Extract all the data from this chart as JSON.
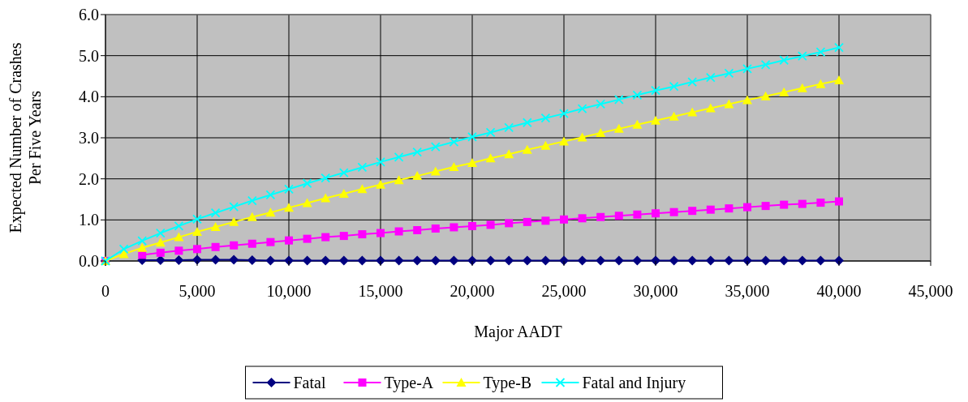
{
  "chart_data": {
    "type": "line",
    "xlabel": "Major AADT",
    "ylabel": "Expected Number of Crashes Per Five Years",
    "x": [
      0,
      1000,
      2000,
      3000,
      4000,
      5000,
      6000,
      7000,
      8000,
      9000,
      10000,
      11000,
      12000,
      13000,
      14000,
      15000,
      16000,
      17000,
      18000,
      19000,
      20000,
      21000,
      22000,
      23000,
      24000,
      25000,
      26000,
      27000,
      28000,
      29000,
      30000,
      31000,
      32000,
      33000,
      34000,
      35000,
      36000,
      37000,
      38000,
      39000,
      40000
    ],
    "series": [
      {
        "name": "Fatal",
        "color": "#000080",
        "marker": "diamond",
        "values": [
          0,
          null,
          0.02,
          0.02,
          0.02,
          0.03,
          0.03,
          0.03,
          0.02,
          0.01,
          0.01,
          0.01,
          0.01,
          0.01,
          0.01,
          0.01,
          0.01,
          0.01,
          0.01,
          0.01,
          0.01,
          0.01,
          0.01,
          0.01,
          0.01,
          0.01,
          0.01,
          0.01,
          0.01,
          0.01,
          0.01,
          0.01,
          0.01,
          0.01,
          0.01,
          0.01,
          0.01,
          0.01,
          0.01,
          0.01,
          0.01
        ]
      },
      {
        "name": "Type-A",
        "color": "#ff00ff",
        "marker": "square",
        "values": [
          0,
          null,
          0.15,
          0.2,
          0.25,
          0.29,
          0.34,
          0.38,
          0.42,
          0.46,
          0.5,
          0.54,
          0.58,
          0.61,
          0.65,
          0.68,
          0.72,
          0.75,
          0.79,
          0.82,
          0.85,
          0.88,
          0.92,
          0.95,
          0.98,
          1.01,
          1.04,
          1.07,
          1.1,
          1.13,
          1.16,
          1.19,
          1.22,
          1.25,
          1.28,
          1.31,
          1.34,
          1.37,
          1.39,
          1.42,
          1.45
        ]
      },
      {
        "name": "Type-B",
        "color": "#ffff00",
        "marker": "triangle",
        "values": [
          0,
          0.17,
          0.32,
          0.45,
          0.58,
          0.71,
          0.83,
          0.95,
          1.07,
          1.18,
          1.3,
          1.41,
          1.53,
          1.64,
          1.75,
          1.86,
          1.97,
          2.07,
          2.18,
          2.29,
          2.39,
          2.5,
          2.6,
          2.71,
          2.81,
          2.91,
          3.01,
          3.12,
          3.22,
          3.32,
          3.42,
          3.52,
          3.62,
          3.72,
          3.82,
          3.92,
          4.01,
          4.11,
          4.21,
          4.31,
          4.4
        ]
      },
      {
        "name": "Fatal and Injury",
        "color": "#00ffff",
        "marker": "cross",
        "values": [
          0,
          0.29,
          0.49,
          0.68,
          0.85,
          1.02,
          1.17,
          1.32,
          1.47,
          1.61,
          1.75,
          1.89,
          2.02,
          2.15,
          2.28,
          2.41,
          2.53,
          2.65,
          2.78,
          2.9,
          3.02,
          3.13,
          3.25,
          3.37,
          3.48,
          3.59,
          3.71,
          3.82,
          3.93,
          4.04,
          4.15,
          4.25,
          4.36,
          4.47,
          4.57,
          4.68,
          4.78,
          4.89,
          4.99,
          5.09,
          5.2
        ]
      }
    ],
    "xlim": [
      0,
      45000
    ],
    "xticks": [
      0,
      {
        "value": 5000,
        "label": "5,000"
      },
      {
        "value": 10000,
        "label": "10,000"
      },
      {
        "value": 15000,
        "label": "15,000"
      },
      {
        "value": 20000,
        "label": "20,000"
      },
      {
        "value": 25000,
        "label": "25,000"
      },
      {
        "value": 30000,
        "label": "30,000"
      },
      {
        "value": 35000,
        "label": "35,000"
      },
      {
        "value": 40000,
        "label": "40,000"
      },
      {
        "value": 45000,
        "label": "45,000"
      }
    ],
    "ylim": [
      0,
      6
    ],
    "yticks": [
      {
        "value": 0,
        "label": "0.0"
      },
      {
        "value": 1,
        "label": "1.0"
      },
      {
        "value": 2,
        "label": "2.0"
      },
      {
        "value": 3,
        "label": "3.0"
      },
      {
        "value": 4,
        "label": "4.0"
      },
      {
        "value": 5,
        "label": "5.0"
      },
      {
        "value": 6,
        "label": "6.0"
      }
    ],
    "grid": true,
    "legend": "bottom",
    "line_style": "solid"
  }
}
